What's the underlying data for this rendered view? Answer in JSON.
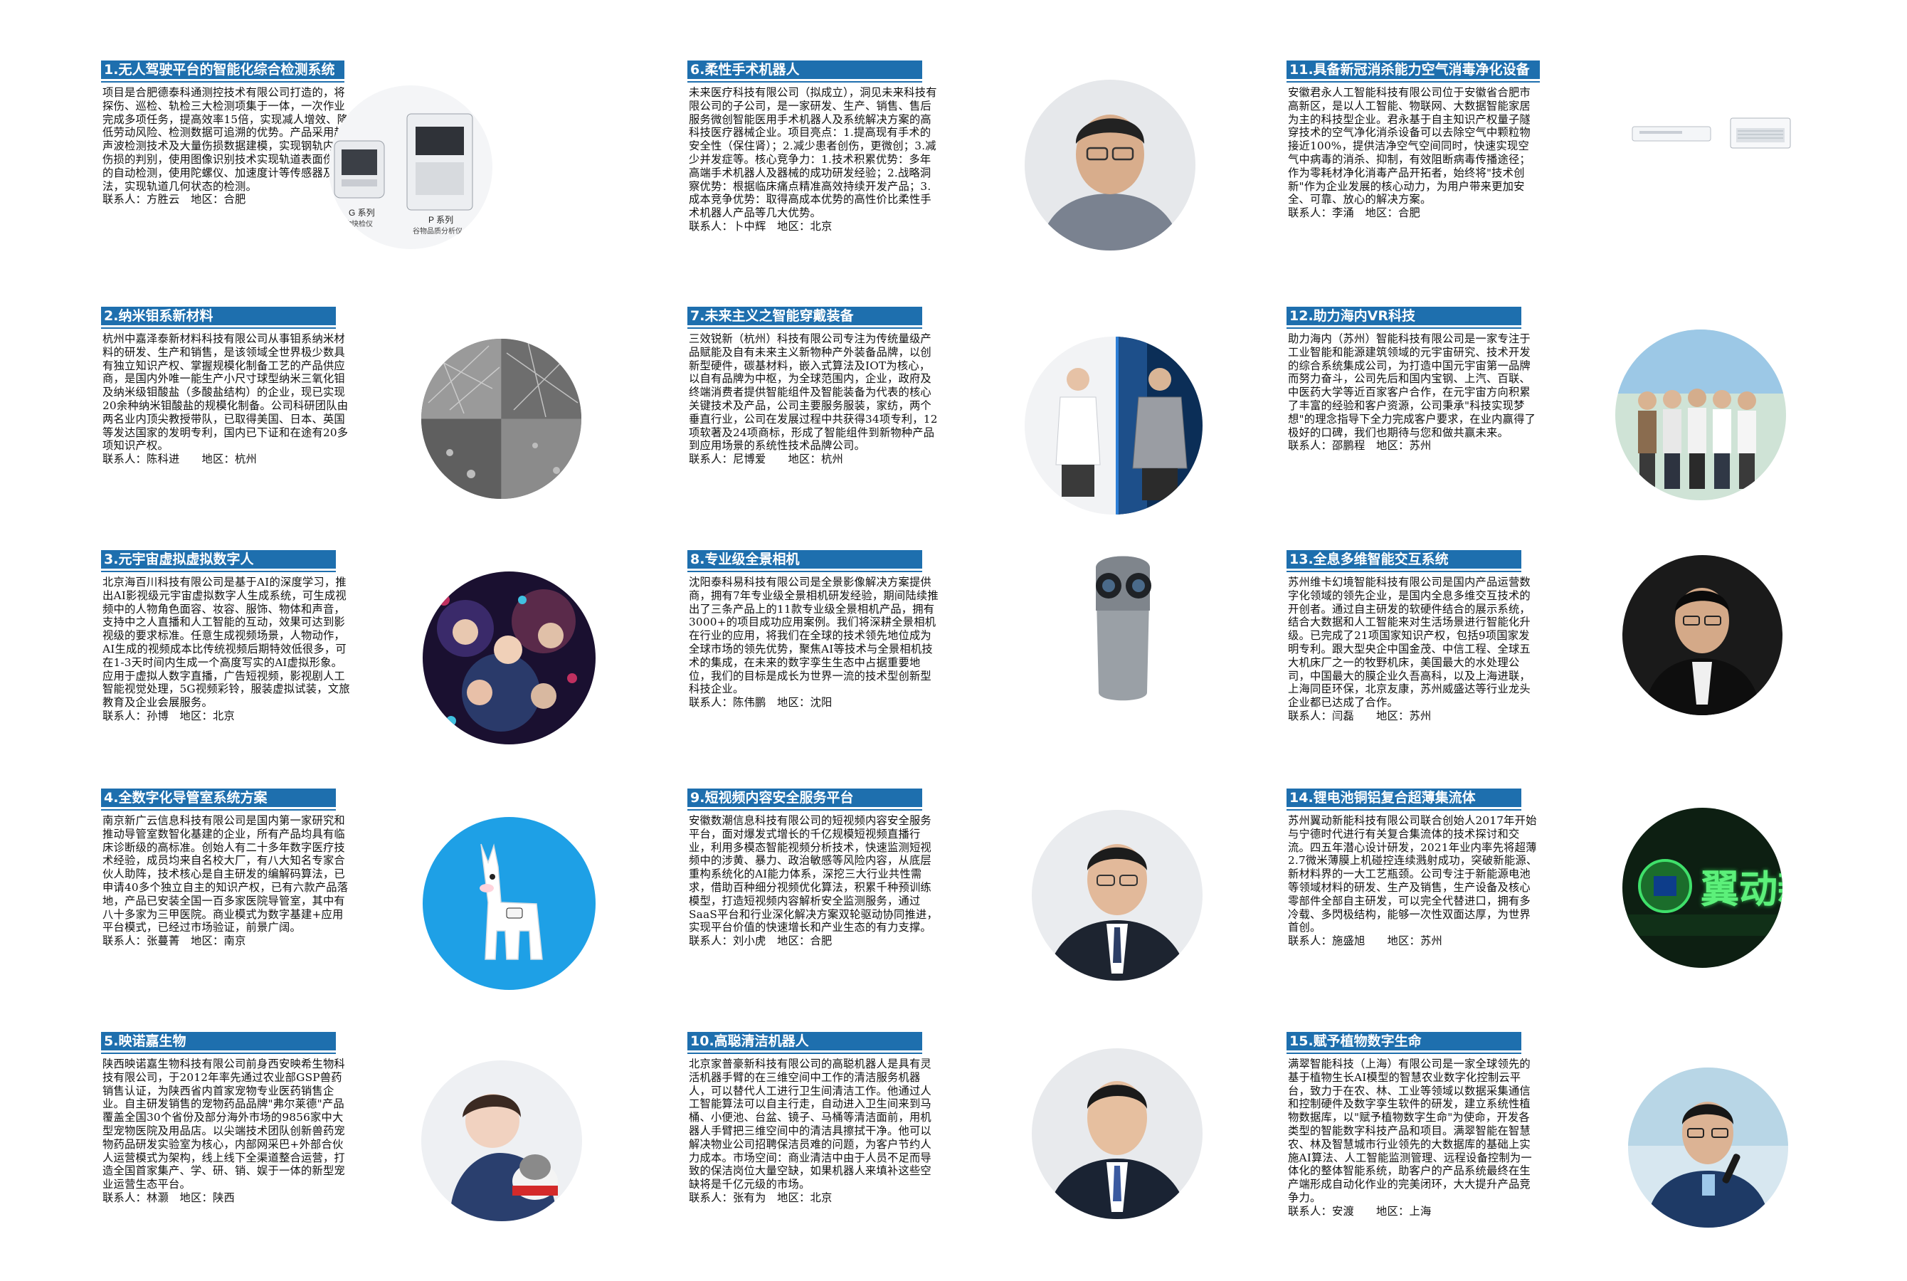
{
  "columns": [
    {
      "cards": [
        {
          "title": "1.无人驾驶平台的智能化综合检测系统",
          "body": "项目是合肥德泰科通测控技术有限公司打造的，将探伤、巡检、轨检三大检测项集于一体，一次作业完成多项任务，提高效率15倍，实现减人增效、降低劳动风险、检测数据可追溯的优势。产品采用超声波检测技术及大量伤损数据建模，实现钢轨内部伤损的判别，使用图像识别技术实现轨道表面伤损的自动检测，使用陀螺仪、加速度计等传感器及算法，实现轨道几何状态的检测。",
          "contact": "联系人：方胜云　地区：合肥",
          "image_labels": [
            "G 系列",
            "谷物快检仪",
            "P 系列",
            "谷物品质分析仪"
          ]
        },
        {
          "title": "2.纳米钼系新材料",
          "body": "杭州中嘉泽泰新材料科技有限公司从事钼系纳米材料的研发、生产和销售，是该领域全世界极少数具有独立知识产权、掌握规模化制备工艺的产品供应商，是国内外唯一能生产小尺寸球型纳米三氧化钼及纳米级钼酸盐（多酸盐结构）的企业，现已实现20余种纳米钼酸盐的规模化制备。公司科研团队由两名业内顶尖教授带队，已取得美国、日本、英国等发达国家的发明专利，国内已下证和在途有20多项知识产权。",
          "contact": "联系人：陈科进　　地区：杭州"
        },
        {
          "title": "3.元宇宙虚拟虚拟数字人",
          "body": "北京海百川科技有限公司是基于AI的深度学习，推出AI影视级元宇宙虚拟数字人生成系统，可生成视频中的人物角色面容、妆容、服饰、物体和声音，支持中之人直播和人工智能的互动，效果可达到影视级的要求标准。任意生成视频场景，人物动作，AI生成的视频成本比传统视频后期特效低很多，可在1-3天时间内生成一个高度写实的AI虚拟形象。应用于虚拟人数字直播，广告短视频，影视剧人工智能视觉处理，5G视频彩铃，服装虚拟试装，文旅教育及企业会展服务。",
          "contact": "联系人：孙博　地区：北京"
        },
        {
          "title": "4.全数字化导管室系统方案",
          "body": "南京新广云信息科技有限公司是国内第一家研究和推动导管室数智化基建的企业，所有产品均具有临床诊断级的高标准。创始人有二十多年数字医疗技术经验，成员均来自名校大厂，有八大知名专家合伙人助阵，技术核心是自主研发的编解码算法，已申请40多个独立自主的知识产权，已有六款产品落地，产品已安装全国一百多家医院导管室，其中有八十多家为三甲医院。商业模式为数字基建+应用平台模式，已经过市场验证，前景广阔。",
          "contact": "联系人：张蔓菁　地区：南京"
        },
        {
          "title": "5.映诺嘉生物",
          "body": "陕西映诺嘉生物科技有限公司前身西安映希生物科技有限公司，于2012年率先通过农业部GSP兽药销售认证，为陕西省内首家宠物专业医药销售企业。自主研发销售的宠物药品品牌\"弗尔莱德\"产品覆盖全国30个省份及部分海外市场的9856家中大型宠物医院及用品店。以尖端技术团队创新兽药宠物药品研发实验室为核心，内部网采巴+外部合伙人运营模式为架构，线上线下全渠道整合运营，打造全国首家集产、学、研、销、娱于一体的新型宠业运营生态平台。",
          "contact": "联系人：林灏　地区：陕西"
        }
      ]
    },
    {
      "cards": [
        {
          "title": "6.柔性手术机器人",
          "body": "未来医疗科技有限公司（拟成立），洞见未来科技有限公司的子公司，是一家研发、生产、销售、售后服务微创智能医用手术机器人及系统解决方案的高科技医疗器械企业。项目亮点：1.提高现有手术的安全性（保住肾）；2.减少患者创伤，更微创；3.减少并发症等。核心竞争力：1.技术积累优势：多年高端手术机器人及器械的成功研发经验；2.战略洞察优势：根据临床痛点精准高效持续开发产品；3.成本竞争优势：取得高成本优势的高性价比柔性手术机器人产品等几大优势。",
          "contact": "联系人：卜中辉　地区：北京"
        },
        {
          "title": "7.未来主义之智能穿戴装备",
          "body": "三效锐新（杭州）科技有限公司专注为传统量级产品赋能及自有未来主义新物种产外装备品牌，以创新型硬件，碳基材料，嵌入式算法及IOT为核心，以自有品牌为中枢，为全球范围内，企业，政府及终端消费者提供智能组件及智能装备为代表的核心关键技术及产品，公司主要服务服装，家纺，两个垂直行业，公司在发展过程中共获得34项专利，12项软著及24项商标，形成了智能组件到新物种产品到应用场景的系统性技术品牌公司。",
          "contact": "联系人：尼博爱　　地区：杭州"
        },
        {
          "title": "8.专业级全景相机",
          "body": "沈阳泰科易科技有限公司是全景影像解决方案提供商，拥有7年专业级全景相机研发经验，期间陆续推出了三条产品上的11款专业级全景相机产品，拥有3000+的项目成功应用案例。我们将深耕全景相机在行业的应用，将我们在全球的技术领先地位成为全球市场的领先优势，聚焦AI等技术与全景相机技术的集成，在未来的数字孪生生态中占据重要地位，我们的目标是成长为世界一流的技术型创新型科技企业。",
          "contact": "联系人：陈伟鹏　地区：沈阳"
        },
        {
          "title": "9.短视频内容安全服务平台",
          "body": "安徽数潮信息科技有限公司的短视频内容安全服务平台，面对爆发式增长的千亿规模短视频直播行业，利用多模态智能视频分析技术，快速监测短视频中的涉黄、暴力、政治敏感等风险内容，从底层重构系统化的AI能力体系，深挖三大行业共性需求，借助百种细分视频优化算法，积累千种预训练模型，打造短视频内容解析安全监测服务，通过SaaS平台和行业深化解决方案双轮驱动协同推进，实现平台价值的快速增长和产业生态的有力支撑。",
          "contact": "联系人：刘小虎　地区：合肥"
        },
        {
          "title": "10.高聪清洁机器人",
          "body": "北京家普豪新科技有限公司的高聪机器人是具有灵活机器手臂的在三维空间中工作的清洁服务机器人，可以替代人工进行卫生间清洁工作。他通过人工智能算法可以自主行走，自动进入卫生间来到马桶、小便池、台盆、镜子、马桶等清洁面前，用机器人手臂把三维空间中的清洁具擦拭干净。他可以解决物业公司招聘保洁员难的问题，为客户节约人力成本。市场空间：商业清洁中由于人员不足而导致的保洁岗位大量空缺，如果机器人来填补这些空缺将是千亿元级的市场。",
          "contact": "联系人：张有为　地区：北京"
        }
      ]
    },
    {
      "cards": [
        {
          "title": "11.具备新冠消杀能力空气消毒净化设备",
          "body": "安徽君永人工智能科技有限公司位于安徽省合肥市高新区，是以人工智能、物联网、大数据智能家居为主的科技型企业。君永基于自主知识产权量子隧穿技术的空气净化消杀设备可以去除空气中颗粒物接近100%，提供洁净空气空间同时，快速实现空气中病毒的消杀、抑制，有效阻断病毒传播途径；作为零耗材净化消毒产品开拓者，始终将\"技术创新\"作为企业发展的核心动力，为用户带来更加安全、可靠、放心的解决方案。",
          "contact": "联系人：李涌　地区：合肥"
        },
        {
          "title": "12.助力海内VR科技",
          "body": "助力海内（苏州）智能科技有限公司是一家专注于工业智能和能源建筑领域的元宇宙研究、技术开发的综合系统集成公司，为打造中国元宇宙第一品牌而努力奋斗，公司先后和国内宝钢、上汽、百联、中医药大学等近百家客户合作，在元宇宙方向积累了丰富的经验和客户资源，公司秉承\"科技实现梦想\"的理念指导下全力完成客户要求，在业内赢得了极好的口碑，我们也期待与您和做共赢未来。",
          "contact": "联系人：邵鹏程　地区：苏州"
        },
        {
          "title": "13.全息多维智能交互系统",
          "body": "苏州维卡幻境智能科技有限公司是国内产品运营数字化领域的领先企业，是国内全息多维交互技术的开创者。通过自主研发的软硬件结合的展示系统，结合大数据和人工智能来对生活场景进行智能化升级。已完成了21项国家知识产权，包括9项国家发明专利。跟大型央企中国金茂、中信工程、全球五大机床厂之一的牧野机床，美国最大的水处理公司，中国最大的膜企业久吾高科，以及上海进联，上海同臣环保，北京友康，苏州威盛达等行业龙头企业都已达成了合作。",
          "contact": "联系人：闫磊　　地区：苏州"
        },
        {
          "title": "14.锂电池铜铝复合超薄集流体",
          "body": "苏州翼动新能科技有限公司联合创始人2017年开始与宁德时代进行有关复合集流体的技术探讨和交流。四五年潜心设计研发，2021年业内率先将超薄2.7微米薄膜上机碰控连续溅射成功，突破新能源、新材料界的一大工艺瓶颈。公司专注于新能源电池等领域材料的研发、生产及销售，生产设备及核心零部件全部自主研发，可以完全代替进口，拥有多冷载、多閃极结构，能够一次性双面达厚，为世界首创。",
          "contact": "联系人：施盛旭　　地区：苏州",
          "image_text": "翼动新能"
        },
        {
          "title": "15.赋予植物数字生命",
          "body": "满翠智能科技（上海）有限公司是一家全球领先的基于植物生长AI模型的智慧农业数字化控制云平台，致力于在农、林、工业等领域以数据采集通信和控制硬件及数字孪生软件的研发，建立系统性植物数据库，以\"赋予植物数字生命\"为使命，开发各类型的智能数字科技产品和项目。满翠智能在智慧农、林及智慧城市行业领先的大数据库的基础上实施AI算法、人工智能监测管理、远程设备控制为一体化的整体智能系统，助客户的产品系统最终在生产端形成自动化作业的完美闭环，大大提升产品竞争力。",
          "contact": "联系人：安渡　　地区：上海"
        }
      ]
    }
  ]
}
